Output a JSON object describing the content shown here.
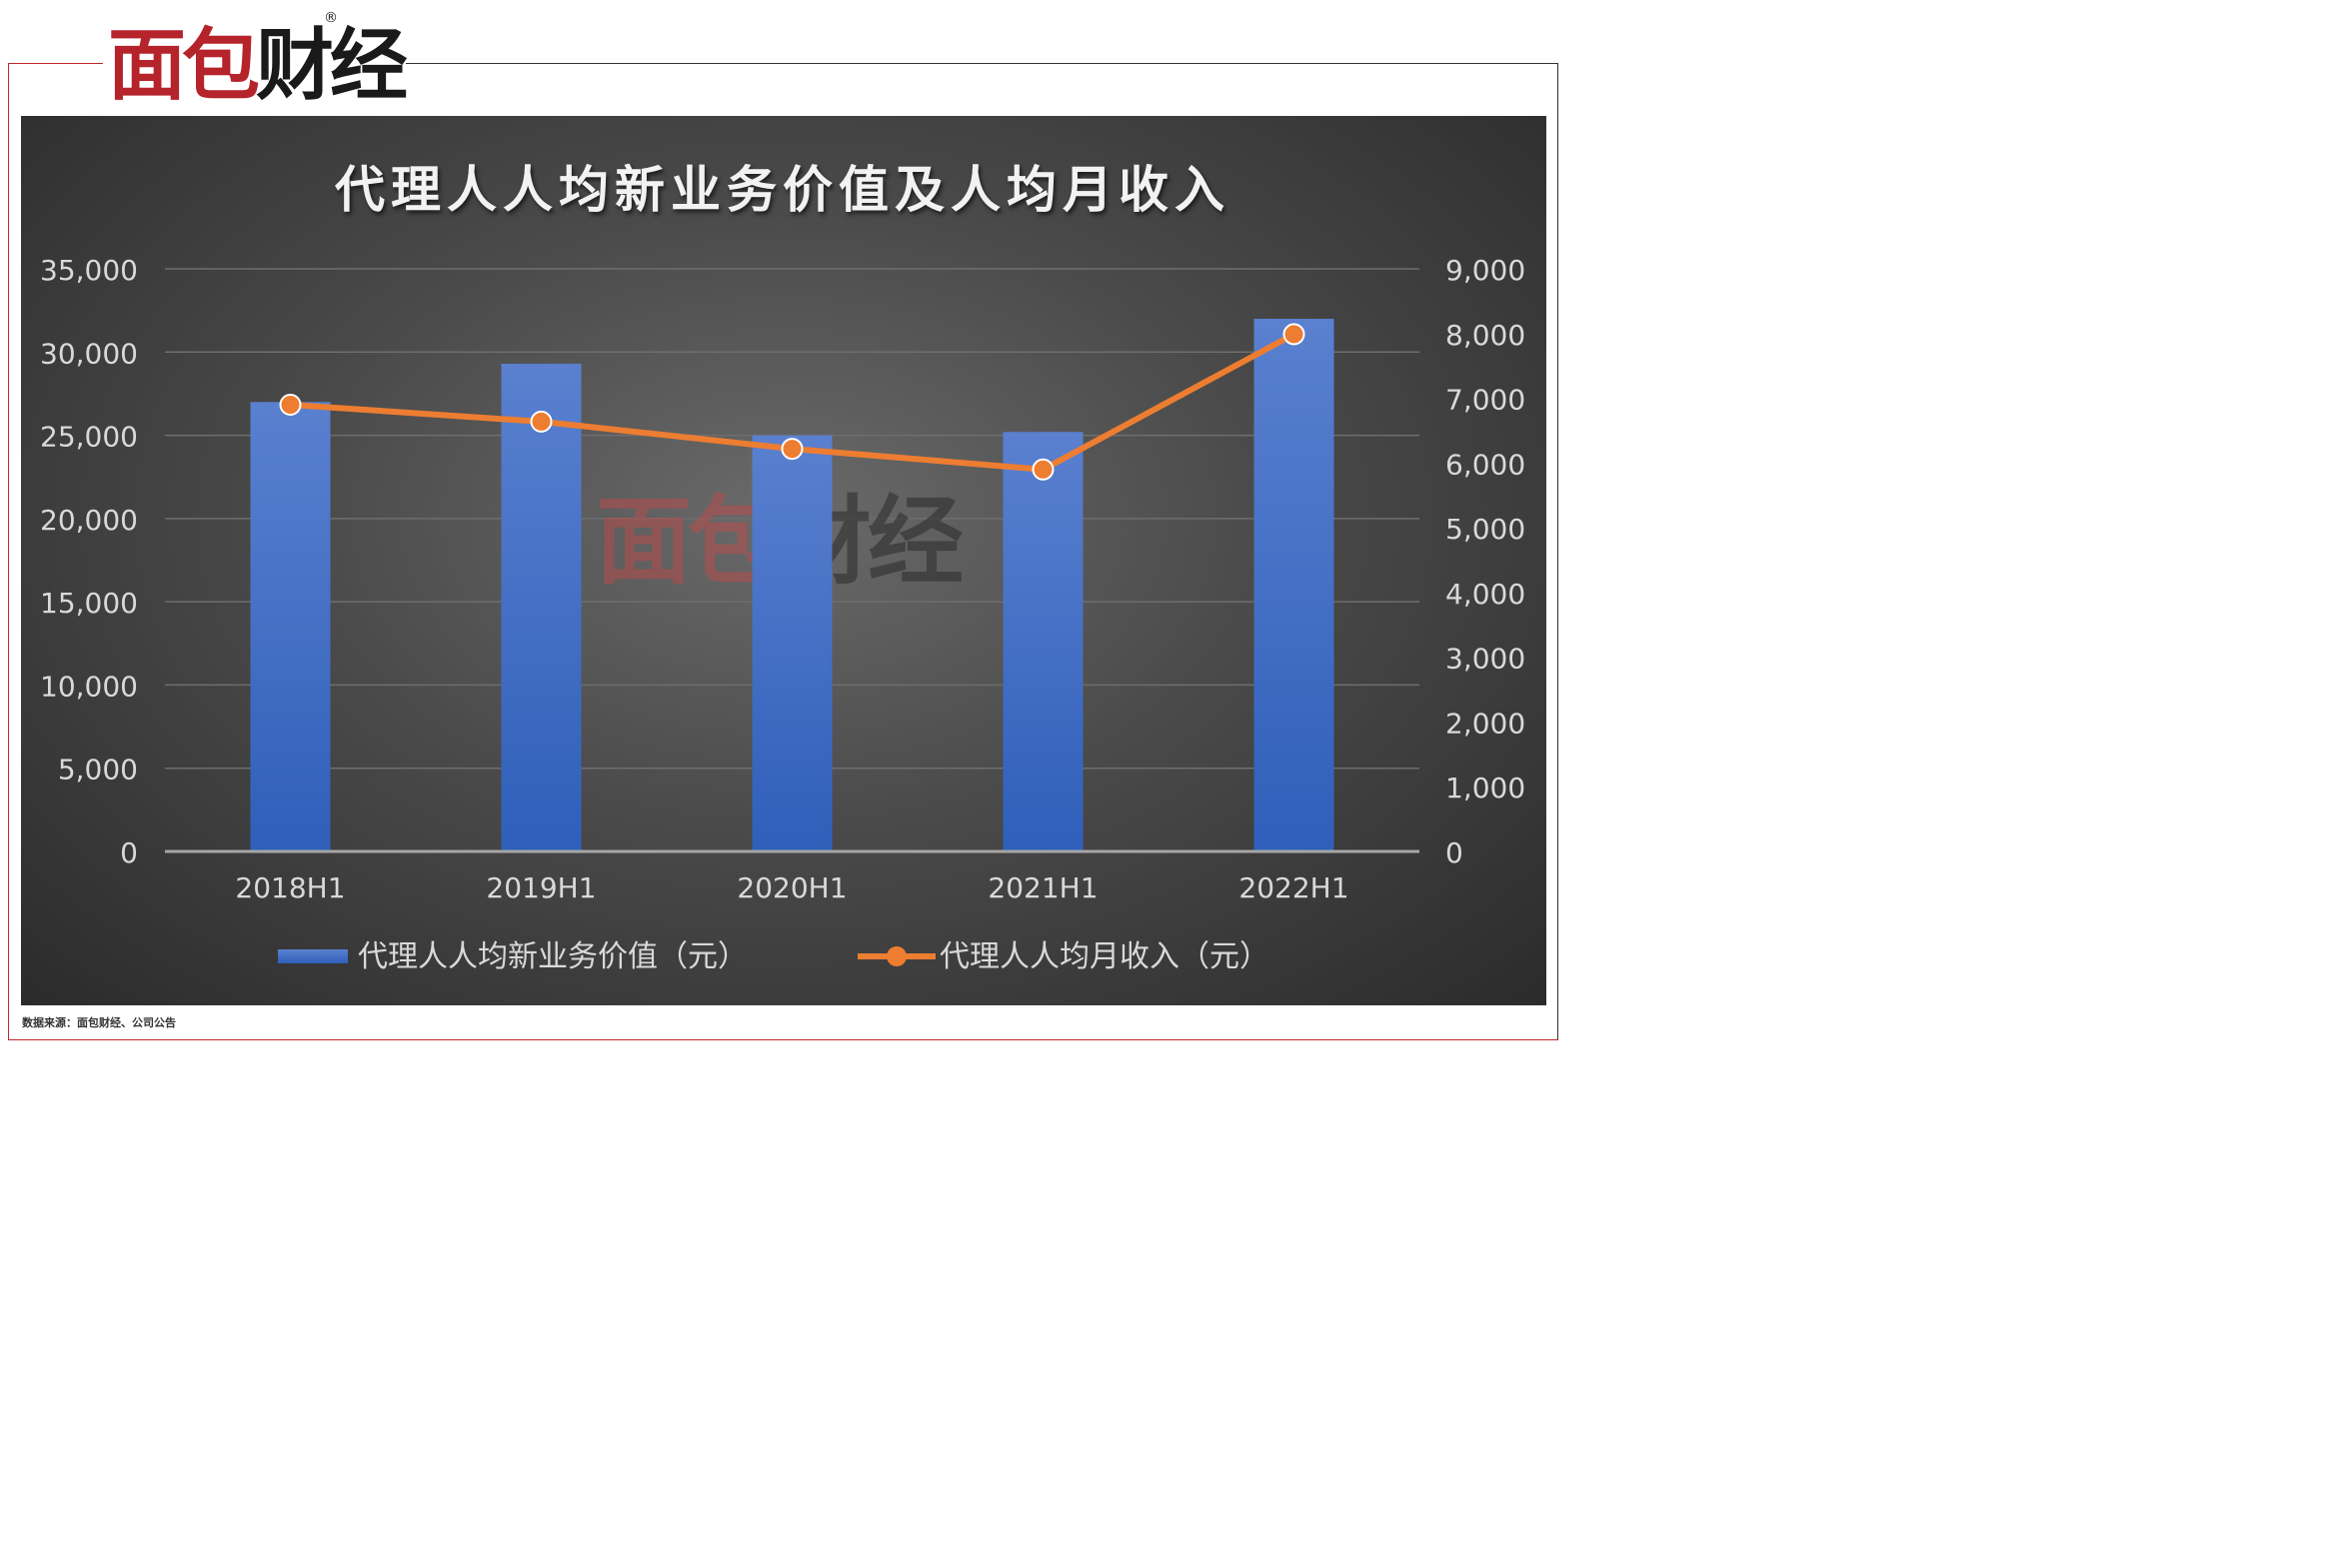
{
  "logo": {
    "text_a": "面包",
    "text_b": "财经",
    "registered": "®"
  },
  "source_note": "数据来源：面包财经、公司公告",
  "chart_data": {
    "type": "bar",
    "title": "代理人人均新业务价值及人均月收入",
    "categories": [
      "2018H1",
      "2019H1",
      "2020H1",
      "2021H1",
      "2022H1"
    ],
    "series": [
      {
        "name": "代理人人均新业务价值（元）",
        "type": "bar",
        "axis": "left",
        "values": [
          27000,
          29300,
          25000,
          25200,
          32000
        ]
      },
      {
        "name": "代理人人均月收入（元）",
        "type": "line",
        "axis": "right",
        "values": [
          6900,
          6640,
          6220,
          5900,
          7990
        ]
      }
    ],
    "y_left": {
      "min": 0,
      "max": 35000,
      "ticks": [
        "0",
        "5,000",
        "10,000",
        "15,000",
        "20,000",
        "25,000",
        "30,000",
        "35,000"
      ]
    },
    "y_right": {
      "min": 0,
      "max": 9000,
      "ticks": [
        "0",
        "1,000",
        "2,000",
        "3,000",
        "4,000",
        "5,000",
        "6,000",
        "7,000",
        "8,000",
        "9,000"
      ]
    },
    "grid": true,
    "legend_position": "bottom",
    "colors": {
      "bar_top": "#5a80cf",
      "bar_bottom": "#2f5fba",
      "line": "#ed7d31",
      "grid": "#6e6e6e",
      "text": "#d9d9d9"
    }
  }
}
